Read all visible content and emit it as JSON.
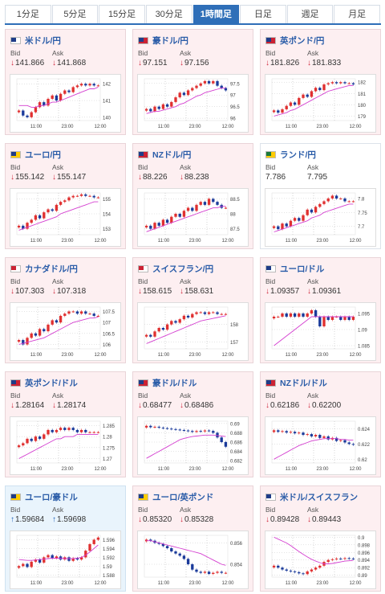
{
  "tabs": [
    {
      "label": "1分足",
      "active": false
    },
    {
      "label": "5分足",
      "active": false
    },
    {
      "label": "15分足",
      "active": false
    },
    {
      "label": "30分足",
      "active": false
    },
    {
      "label": "1時間足",
      "active": true
    },
    {
      "label": "日足",
      "active": false
    },
    {
      "label": "週足",
      "active": false
    },
    {
      "label": "月足",
      "active": false
    }
  ],
  "labels": {
    "bid": "Bid",
    "ask": "Ask"
  },
  "x_ticks": [
    "11:00",
    "23:00",
    "12:00"
  ],
  "cards": [
    {
      "pair": "米ドル/円",
      "flag": [
        "#1f3c88",
        "#ffffff"
      ],
      "bid": "141.866",
      "ask": "141.868",
      "bid_dir": "down",
      "ask_dir": "down",
      "bg": "down",
      "chart_data": {
        "type": "candlestick",
        "y_ticks": [
          "142",
          "141",
          "140"
        ],
        "ylim": [
          139.8,
          142.3
        ],
        "closes": [
          140.4,
          140.1,
          140.0,
          140.3,
          140.6,
          140.9,
          140.7,
          141.1,
          141.3,
          141.0,
          141.4,
          141.6,
          141.5,
          141.8,
          141.9,
          142.0,
          141.9,
          142.0,
          141.9,
          141.9
        ],
        "ma": [
          140.7,
          140.7,
          140.7,
          140.6,
          140.6,
          140.7,
          140.7,
          140.8,
          140.9,
          140.9,
          141.0,
          141.1,
          141.2,
          141.3,
          141.4,
          141.5,
          141.6,
          141.7,
          141.7,
          141.8
        ]
      }
    },
    {
      "pair": "豪ドル/円",
      "flag": [
        "#1f3c88",
        "#cc2233"
      ],
      "bid": "97.151",
      "ask": "97.156",
      "bid_dir": "down",
      "ask_dir": "down",
      "bg": "down",
      "chart_data": {
        "type": "candlestick",
        "y_ticks": [
          "97.5",
          "97",
          "96.5",
          "96"
        ],
        "ylim": [
          95.9,
          97.7
        ],
        "closes": [
          96.4,
          96.3,
          96.5,
          96.4,
          96.6,
          96.5,
          96.7,
          96.9,
          97.1,
          97.0,
          97.2,
          97.3,
          97.4,
          97.5,
          97.6,
          97.5,
          97.6,
          97.4,
          97.3,
          97.2
        ],
        "ma": [
          96.2,
          96.25,
          96.3,
          96.3,
          96.35,
          96.4,
          96.45,
          96.5,
          96.6,
          96.65,
          96.75,
          96.85,
          96.95,
          97.0,
          97.1,
          97.15,
          97.2,
          97.25,
          97.3,
          97.3
        ]
      }
    },
    {
      "pair": "英ポンド/円",
      "flag": [
        "#1f3c88",
        "#cc2233"
      ],
      "bid": "181.826",
      "ask": "181.833",
      "bid_dir": "down",
      "ask_dir": "down",
      "bg": "down",
      "chart_data": {
        "type": "candlestick",
        "y_ticks": [
          "182",
          "181",
          "180",
          "179"
        ],
        "ylim": [
          178.6,
          182.3
        ],
        "closes": [
          179.5,
          179.3,
          179.6,
          179.9,
          180.2,
          180.0,
          180.6,
          180.9,
          180.7,
          181.2,
          181.5,
          181.3,
          181.8,
          181.9,
          182.0,
          181.9,
          182.0,
          181.9,
          181.9,
          181.8
        ],
        "ma": [
          179.0,
          179.1,
          179.2,
          179.3,
          179.5,
          179.6,
          179.8,
          180.0,
          180.2,
          180.4,
          180.6,
          180.8,
          181.0,
          181.2,
          181.3,
          181.4,
          181.5,
          181.6,
          181.7,
          181.7
        ]
      }
    },
    {
      "pair": "ユーロ/円",
      "flag": [
        "#1f3c88",
        "#ffcc00"
      ],
      "bid": "155.142",
      "ask": "155.147",
      "bid_dir": "down",
      "ask_dir": "down",
      "bg": "down",
      "chart_data": {
        "type": "candlestick",
        "y_ticks": [
          "155",
          "154",
          "153"
        ],
        "ylim": [
          152.6,
          155.4
        ],
        "closes": [
          153.2,
          153.0,
          153.4,
          153.6,
          153.9,
          153.7,
          154.1,
          154.3,
          154.2,
          154.6,
          154.8,
          154.9,
          155.1,
          155.2,
          155.2,
          155.3,
          155.2,
          155.2,
          155.1,
          155.1
        ],
        "ma": [
          152.9,
          153.0,
          153.1,
          153.2,
          153.3,
          153.4,
          153.5,
          153.6,
          153.7,
          153.8,
          154.0,
          154.1,
          154.2,
          154.3,
          154.4,
          154.5,
          154.6,
          154.7,
          154.8,
          154.8
        ]
      }
    },
    {
      "pair": "NZドル/円",
      "flag": [
        "#1f3c88",
        "#cc2233"
      ],
      "bid": "88.226",
      "ask": "88.238",
      "bid_dir": "down",
      "ask_dir": "down",
      "bg": "down",
      "chart_data": {
        "type": "candlestick",
        "y_ticks": [
          "88.5",
          "88",
          "87.5"
        ],
        "ylim": [
          87.3,
          88.7
        ],
        "closes": [
          87.6,
          87.5,
          87.7,
          87.6,
          87.8,
          87.7,
          87.9,
          88.0,
          87.9,
          88.1,
          88.2,
          88.1,
          88.3,
          88.4,
          88.3,
          88.5,
          88.4,
          88.3,
          88.2,
          88.2
        ],
        "ma": [
          87.4,
          87.45,
          87.5,
          87.55,
          87.6,
          87.65,
          87.7,
          87.75,
          87.8,
          87.85,
          87.9,
          87.95,
          88.0,
          88.05,
          88.1,
          88.15,
          88.2,
          88.2,
          88.25,
          88.25
        ]
      }
    },
    {
      "pair": "ランド/円",
      "flag": [
        "#1c7a3c",
        "#ffcc00"
      ],
      "bid": "7.786",
      "ask": "7.795",
      "bid_dir": "",
      "ask_dir": "",
      "bg": "none",
      "chart_data": {
        "type": "candlestick",
        "y_ticks": [
          "7.8",
          "7.75",
          "7.7"
        ],
        "ylim": [
          7.67,
          7.82
        ],
        "closes": [
          7.7,
          7.69,
          7.71,
          7.7,
          7.72,
          7.73,
          7.72,
          7.74,
          7.76,
          7.75,
          7.77,
          7.78,
          7.79,
          7.8,
          7.81,
          7.8,
          7.8,
          7.79,
          7.79,
          7.79
        ],
        "ma": [
          7.68,
          7.685,
          7.69,
          7.695,
          7.7,
          7.705,
          7.71,
          7.715,
          7.72,
          7.73,
          7.735,
          7.74,
          7.75,
          7.755,
          7.76,
          7.765,
          7.77,
          7.775,
          7.78,
          7.78
        ]
      }
    },
    {
      "pair": "カナダドル/円",
      "flag": [
        "#cc2233",
        "#ffffff"
      ],
      "bid": "107.303",
      "ask": "107.318",
      "bid_dir": "down",
      "ask_dir": "down",
      "bg": "down",
      "chart_data": {
        "type": "candlestick",
        "y_ticks": [
          "107.5",
          "107",
          "106.5",
          "106"
        ],
        "ylim": [
          105.8,
          107.7
        ],
        "closes": [
          106.2,
          106.0,
          106.3,
          106.5,
          106.4,
          106.7,
          106.6,
          106.9,
          107.1,
          107.0,
          107.3,
          107.4,
          107.5,
          107.5,
          107.4,
          107.5,
          107.4,
          107.4,
          107.3,
          107.3
        ],
        "ma": [
          106.0,
          106.05,
          106.1,
          106.15,
          106.2,
          106.25,
          106.3,
          106.4,
          106.5,
          106.6,
          106.7,
          106.8,
          106.9,
          107.0,
          107.05,
          107.1,
          107.15,
          107.2,
          107.2,
          107.25
        ]
      }
    },
    {
      "pair": "スイスフラン/円",
      "flag": [
        "#cc2233",
        "#ffffff"
      ],
      "bid": "158.615",
      "ask": "158.631",
      "bid_dir": "down",
      "ask_dir": "down",
      "bg": "down",
      "chart_data": {
        "type": "candlestick",
        "y_ticks": [
          "158",
          "157"
        ],
        "ylim": [
          156.6,
          159.0
        ],
        "closes": [
          157.4,
          157.3,
          157.6,
          157.8,
          157.7,
          158.0,
          158.2,
          158.1,
          158.3,
          158.5,
          158.4,
          158.6,
          158.7,
          158.7,
          158.6,
          158.7,
          158.7,
          158.6,
          158.6,
          158.6
        ],
        "ma": [
          156.9,
          157.0,
          157.1,
          157.2,
          157.3,
          157.4,
          157.5,
          157.6,
          157.7,
          157.8,
          157.9,
          158.0,
          158.1,
          158.2,
          158.25,
          158.3,
          158.35,
          158.4,
          158.45,
          158.5
        ]
      }
    },
    {
      "pair": "ユーロ/ドル",
      "flag": [
        "#1f3c88",
        "#ffffff"
      ],
      "bid": "1.09357",
      "ask": "1.09361",
      "bid_dir": "down",
      "ask_dir": "down",
      "bg": "down",
      "chart_data": {
        "type": "candlestick",
        "y_ticks": [
          "1.095",
          "1.09",
          "1.085"
        ],
        "ylim": [
          1.084,
          1.097
        ],
        "closes": [
          1.094,
          1.094,
          1.095,
          1.094,
          1.095,
          1.094,
          1.095,
          1.094,
          1.095,
          1.096,
          1.094,
          1.091,
          1.094,
          1.093,
          1.094,
          1.094,
          1.093,
          1.094,
          1.093,
          1.094
        ],
        "ma": [
          1.085,
          1.086,
          1.087,
          1.088,
          1.089,
          1.09,
          1.091,
          1.092,
          1.093,
          1.094,
          1.094,
          1.094,
          1.094,
          1.094,
          1.094,
          1.094,
          1.094,
          1.094,
          1.094,
          1.094
        ]
      }
    },
    {
      "pair": "英ポンド/ドル",
      "flag": [
        "#1f3c88",
        "#cc2233"
      ],
      "bid": "1.28164",
      "ask": "1.28174",
      "bid_dir": "down",
      "ask_dir": "down",
      "bg": "down",
      "chart_data": {
        "type": "candlestick",
        "y_ticks": [
          "1.285",
          "1.28",
          "1.275",
          "1.27"
        ],
        "ylim": [
          1.268,
          1.287
        ],
        "closes": [
          1.276,
          1.277,
          1.279,
          1.278,
          1.28,
          1.279,
          1.281,
          1.283,
          1.282,
          1.283,
          1.284,
          1.283,
          1.284,
          1.283,
          1.282,
          1.283,
          1.282,
          1.282,
          1.282,
          1.282
        ],
        "ma": [
          1.27,
          1.271,
          1.272,
          1.273,
          1.274,
          1.275,
          1.276,
          1.277,
          1.278,
          1.279,
          1.279,
          1.28,
          1.28,
          1.28,
          1.281,
          1.281,
          1.281,
          1.281,
          1.281,
          1.281
        ]
      }
    },
    {
      "pair": "豪ドル/ドル",
      "flag": [
        "#1f3c88",
        "#cc2233"
      ],
      "bid": "0.68477",
      "ask": "0.68486",
      "bid_dir": "down",
      "ask_dir": "down",
      "bg": "down",
      "chart_data": {
        "type": "candlestick",
        "y_ticks": [
          "0.69",
          "0.688",
          "0.686",
          "0.684",
          "0.682"
        ],
        "ylim": [
          0.6815,
          0.6905
        ],
        "closes": [
          0.6895,
          0.6892,
          0.6893,
          0.6891,
          0.689,
          0.6889,
          0.6888,
          0.6887,
          0.6886,
          0.6885,
          0.6884,
          0.6882,
          0.6884,
          0.6883,
          0.6885,
          0.6884,
          0.688,
          0.687,
          0.686,
          0.685
        ],
        "ma": [
          0.6825,
          0.683,
          0.6835,
          0.684,
          0.6845,
          0.685,
          0.6855,
          0.686,
          0.6865,
          0.6868,
          0.687,
          0.6872,
          0.6873,
          0.6874,
          0.6875,
          0.6875,
          0.6875,
          0.6874,
          0.6873,
          0.6872
        ]
      }
    },
    {
      "pair": "NZドル/ドル",
      "flag": [
        "#1f3c88",
        "#cc2233"
      ],
      "bid": "0.62186",
      "ask": "0.62200",
      "bid_dir": "down",
      "ask_dir": "down",
      "bg": "down",
      "chart_data": {
        "type": "candlestick",
        "y_ticks": [
          "0.624",
          "0.622",
          "0.62"
        ],
        "ylim": [
          0.6195,
          0.625
        ],
        "closes": [
          0.6238,
          0.6236,
          0.6237,
          0.6235,
          0.6236,
          0.6234,
          0.6235,
          0.6232,
          0.6233,
          0.623,
          0.6232,
          0.6228,
          0.623,
          0.6226,
          0.6228,
          0.6224,
          0.6225,
          0.6222,
          0.622,
          0.6219
        ],
        "ma": [
          0.62,
          0.6203,
          0.6206,
          0.6209,
          0.6212,
          0.6215,
          0.6218,
          0.622,
          0.6222,
          0.6224,
          0.6225,
          0.6226,
          0.6227,
          0.6227,
          0.6227,
          0.6227,
          0.6226,
          0.6226,
          0.6225,
          0.6225
        ]
      }
    },
    {
      "pair": "ユーロ/豪ドル",
      "flag": [
        "#1f3c88",
        "#ffcc00"
      ],
      "bid": "1.59684",
      "ask": "1.59698",
      "bid_dir": "up",
      "ask_dir": "up",
      "bg": "up",
      "chart_data": {
        "type": "candlestick",
        "y_ticks": [
          "1.596",
          "1.594",
          "1.592",
          "1.59",
          "1.588"
        ],
        "ylim": [
          1.5875,
          1.597
        ],
        "closes": [
          1.59,
          1.5905,
          1.5898,
          1.591,
          1.5915,
          1.5908,
          1.592,
          1.5925,
          1.5918,
          1.5922,
          1.5915,
          1.592,
          1.5912,
          1.5918,
          1.5915,
          1.592,
          1.5935,
          1.595,
          1.596,
          1.5965
        ],
        "ma": [
          1.5915,
          1.5914,
          1.5913,
          1.5913,
          1.5914,
          1.5915,
          1.5916,
          1.5917,
          1.5918,
          1.5918,
          1.5918,
          1.5917,
          1.5917,
          1.5917,
          1.5918,
          1.592,
          1.5925,
          1.5932,
          1.594,
          1.5948
        ]
      }
    },
    {
      "pair": "ユーロ/英ポンド",
      "flag": [
        "#1f3c88",
        "#ffcc00"
      ],
      "bid": "0.85320",
      "ask": "0.85328",
      "bid_dir": "down",
      "ask_dir": "down",
      "bg": "down",
      "chart_data": {
        "type": "candlestick",
        "y_ticks": [
          "0.856",
          "0.854"
        ],
        "ylim": [
          0.8528,
          0.8567
        ],
        "closes": [
          0.8563,
          0.8562,
          0.856,
          0.8559,
          0.8557,
          0.8555,
          0.8552,
          0.855,
          0.8548,
          0.8545,
          0.854,
          0.8535,
          0.8533,
          0.8532,
          0.8533,
          0.8531,
          0.8532,
          0.8533,
          0.8532,
          0.8532
        ],
        "ma": [
          0.8562,
          0.8562,
          0.8561,
          0.856,
          0.8559,
          0.8558,
          0.8557,
          0.8556,
          0.8555,
          0.8554,
          0.8553,
          0.8552,
          0.8551,
          0.855,
          0.8548,
          0.8546,
          0.8544,
          0.8542,
          0.854,
          0.8539
        ]
      }
    },
    {
      "pair": "米ドル/スイスフラン",
      "flag": [
        "#1f3c88",
        "#ffffff"
      ],
      "bid": "0.89428",
      "ask": "0.89443",
      "bid_dir": "down",
      "ask_dir": "down",
      "bg": "down",
      "chart_data": {
        "type": "candlestick",
        "y_ticks": [
          "0.9",
          "0.898",
          "0.896",
          "0.894",
          "0.892",
          "0.89"
        ],
        "ylim": [
          0.8895,
          0.9005
        ],
        "closes": [
          0.8925,
          0.892,
          0.8915,
          0.8912,
          0.891,
          0.8908,
          0.8905,
          0.8903,
          0.891,
          0.8915,
          0.892,
          0.8925,
          0.8935,
          0.894,
          0.8942,
          0.8944,
          0.8943,
          0.8945,
          0.8944,
          0.8943
        ],
        "ma": [
          0.9,
          0.8995,
          0.899,
          0.8985,
          0.8978,
          0.897,
          0.8962,
          0.8955,
          0.8948,
          0.8942,
          0.8937,
          0.8933,
          0.893,
          0.893,
          0.8931,
          0.8933,
          0.8935,
          0.8937,
          0.8938,
          0.8939
        ]
      }
    }
  ]
}
